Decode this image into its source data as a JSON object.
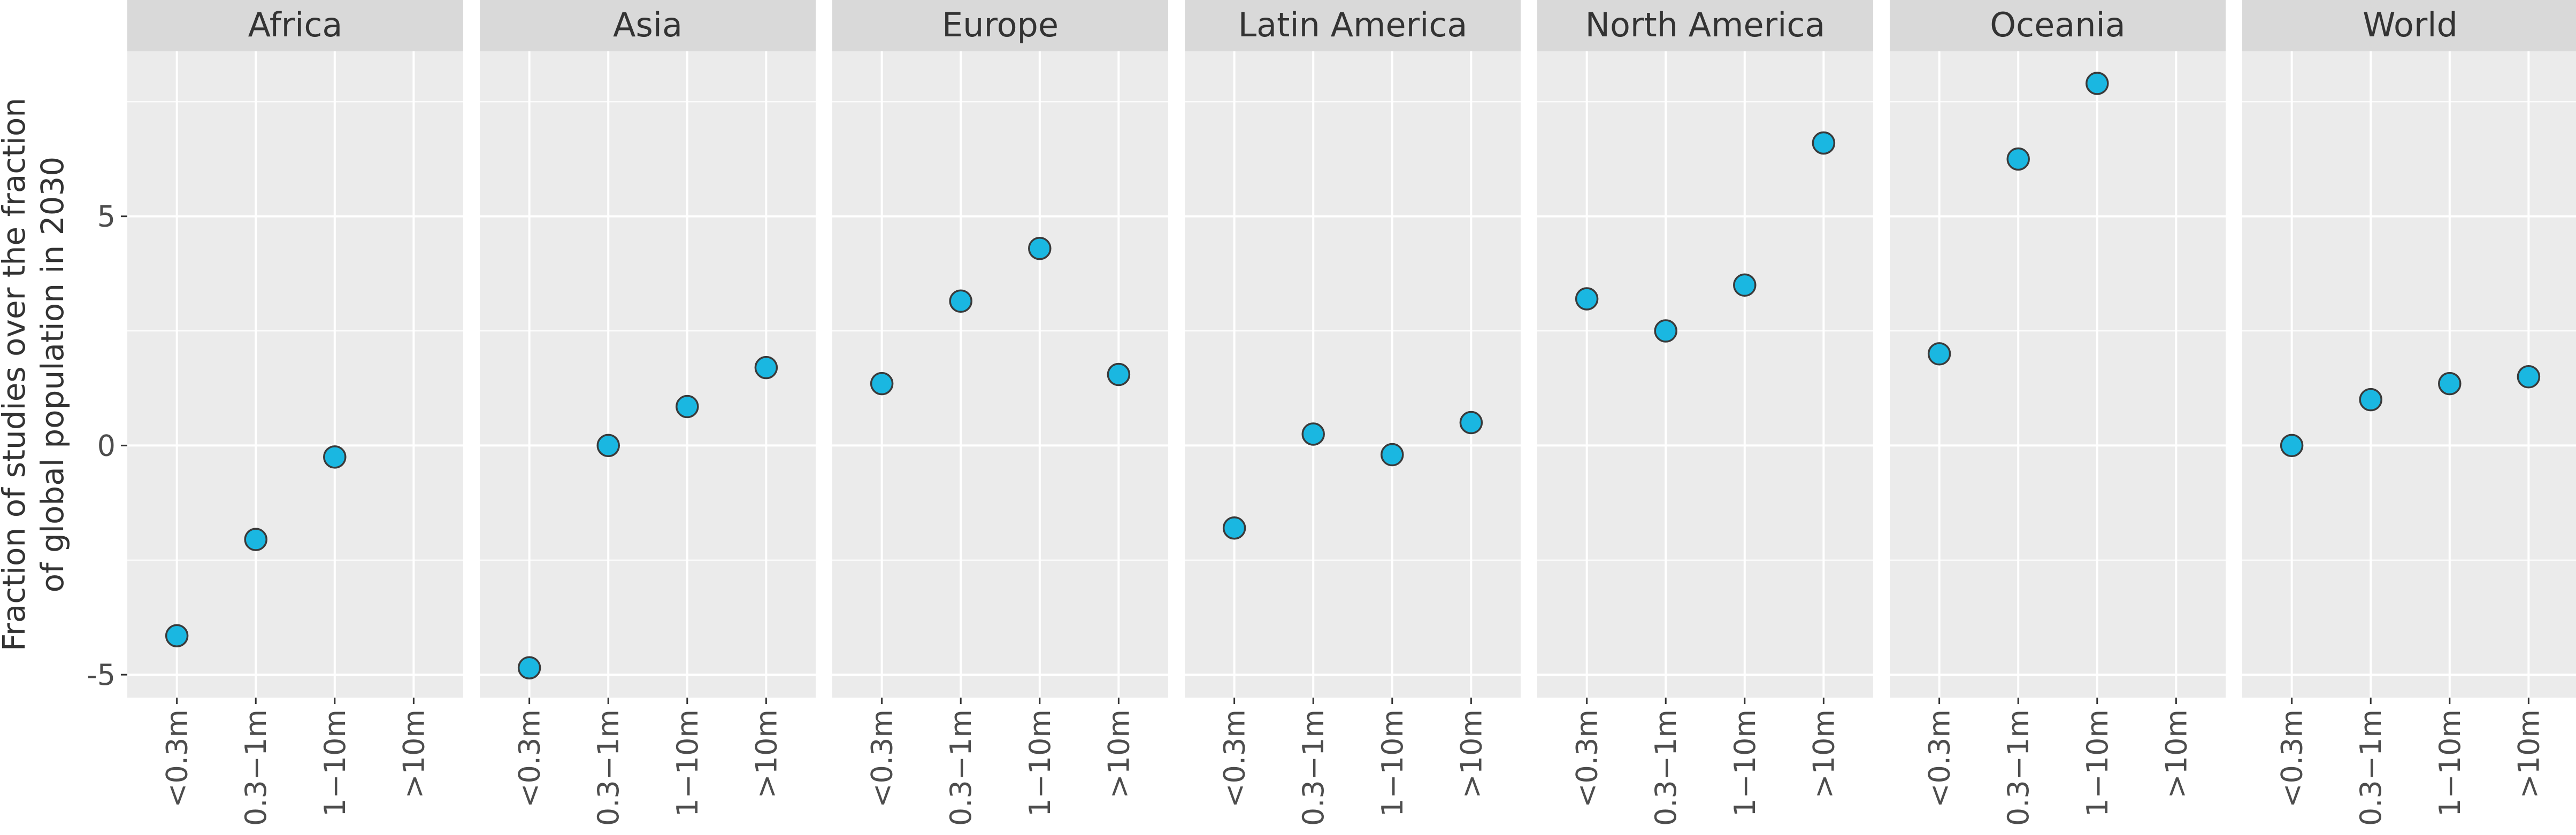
{
  "chart_data": {
    "type": "scatter",
    "title": "",
    "xlabel": "",
    "ylabel_lines": [
      "Fraction of studies over the fraction",
      "of global population in 2030"
    ],
    "categories": [
      "<0.3m",
      "0.3−1m",
      "1−10m",
      ">10m"
    ],
    "ylim": [
      -5.5,
      8.6
    ],
    "y_ticks": [
      -5,
      0,
      5
    ],
    "y_tick_labels": [
      "-5",
      "0",
      "5"
    ],
    "grid": true,
    "legend": "none",
    "facets": [
      {
        "name": "Africa",
        "values": [
          -4.15,
          -2.05,
          -0.25,
          null
        ]
      },
      {
        "name": "Asia",
        "values": [
          -4.85,
          0.0,
          0.85,
          1.7
        ]
      },
      {
        "name": "Europe",
        "values": [
          1.35,
          3.15,
          4.3,
          1.55
        ]
      },
      {
        "name": "Latin America",
        "values": [
          -1.8,
          0.25,
          -0.2,
          0.5
        ]
      },
      {
        "name": "North America",
        "values": [
          3.2,
          2.5,
          3.5,
          6.6
        ]
      },
      {
        "name": "Oceania",
        "values": [
          2.0,
          6.25,
          7.9,
          null
        ]
      },
      {
        "name": "World",
        "values": [
          0.0,
          1.0,
          1.35,
          1.5
        ]
      }
    ],
    "colors": {
      "point_fill": "#1ab7e1",
      "point_stroke": "#3a3a3a",
      "panel_bg": "#ebebeb",
      "strip_bg": "#d9d9d9",
      "grid": "#ffffff"
    }
  }
}
